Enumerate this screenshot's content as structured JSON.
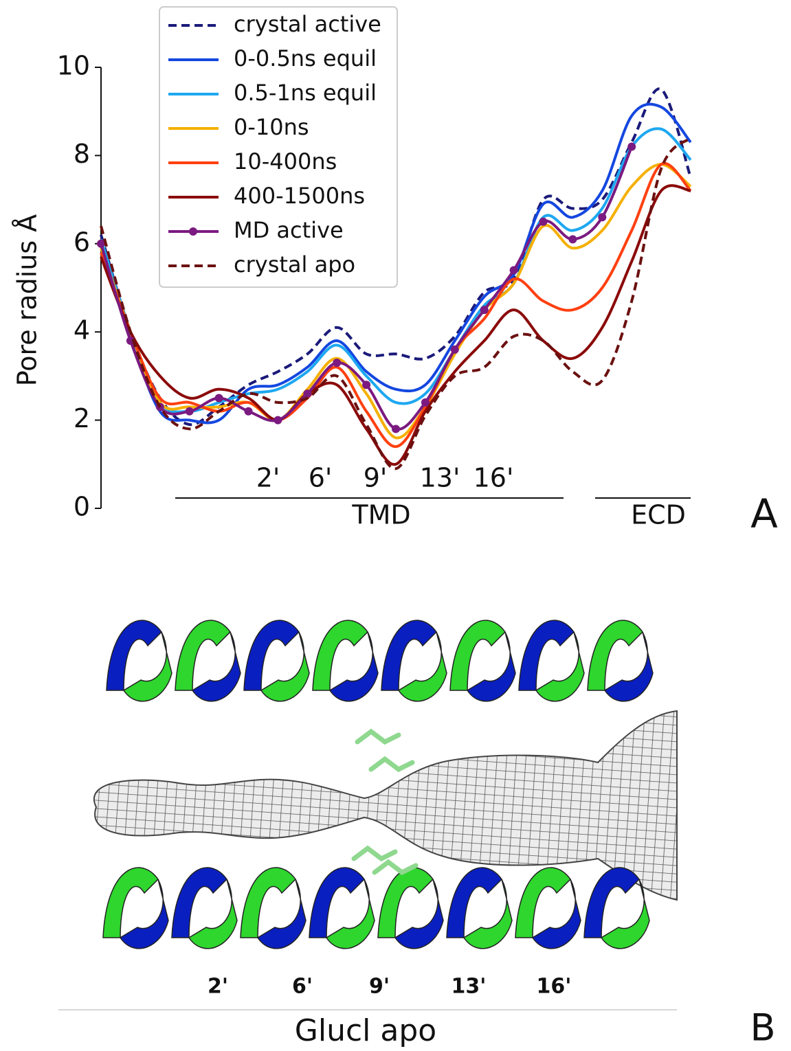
{
  "chart_data": {
    "type": "line",
    "y_label": "Pore radius Å",
    "x": [
      0,
      5,
      10,
      15,
      20,
      25,
      30,
      35,
      40,
      45,
      50,
      55,
      60,
      65,
      70,
      75,
      80,
      85,
      90,
      95,
      100
    ],
    "xlim": [
      0,
      100
    ],
    "ylim": [
      0,
      10
    ],
    "yticks": [
      0,
      2,
      4,
      6,
      8,
      10
    ],
    "legend": "upper left",
    "series": [
      {
        "name": "crystal active",
        "color": "#1a1a7a",
        "style": "dashed",
        "values": [
          6.2,
          4.0,
          2.5,
          1.9,
          2.3,
          2.8,
          3.1,
          3.5,
          4.1,
          3.5,
          3.5,
          3.4,
          3.9,
          4.9,
          5.2,
          7.0,
          6.8,
          7.0,
          8.3,
          9.5,
          7.5
        ]
      },
      {
        "name": "0-0.5ns equil",
        "color": "#1447e0",
        "style": "solid",
        "values": [
          6.0,
          3.9,
          2.2,
          2.0,
          2.0,
          2.7,
          2.8,
          3.2,
          3.8,
          3.1,
          2.7,
          2.8,
          3.8,
          4.8,
          5.3,
          6.9,
          6.6,
          7.2,
          8.9,
          9.1,
          8.3
        ]
      },
      {
        "name": "0.5-1ns equil",
        "color": "#1ea8f0",
        "style": "solid",
        "values": [
          6.1,
          4.0,
          2.4,
          2.2,
          2.4,
          2.6,
          2.7,
          3.1,
          3.7,
          3.0,
          2.4,
          2.6,
          3.6,
          4.6,
          5.1,
          6.6,
          6.3,
          6.8,
          8.2,
          8.6,
          7.9
        ]
      },
      {
        "name": "0-10ns",
        "color": "#f5b000",
        "style": "solid",
        "values": [
          5.9,
          4.0,
          2.4,
          2.3,
          2.3,
          2.4,
          2.0,
          2.7,
          3.4,
          2.6,
          1.6,
          2.3,
          3.5,
          4.5,
          5.1,
          6.4,
          5.9,
          6.3,
          7.3,
          7.8,
          7.3
        ]
      },
      {
        "name": "10-400ns",
        "color": "#ff4010",
        "style": "solid",
        "values": [
          5.8,
          4.0,
          2.5,
          2.4,
          2.2,
          2.4,
          2.0,
          2.5,
          3.2,
          2.2,
          1.4,
          2.3,
          3.6,
          4.3,
          5.2,
          4.7,
          4.5,
          5.0,
          6.3,
          7.8,
          7.2
        ]
      },
      {
        "name": "400-1500ns",
        "color": "#8b0a0a",
        "style": "solid",
        "values": [
          5.7,
          4.0,
          3.0,
          2.5,
          2.7,
          2.5,
          2.0,
          2.6,
          2.8,
          1.8,
          1.0,
          2.2,
          3.1,
          3.8,
          4.5,
          3.8,
          3.4,
          4.1,
          5.6,
          7.2,
          7.2
        ]
      },
      {
        "name": "MD active",
        "color": "#7b1a80",
        "style": "solid",
        "marker": "o",
        "values": [
          6.0,
          3.8,
          2.3,
          2.2,
          2.5,
          2.2,
          2.0,
          2.6,
          3.3,
          2.8,
          1.8,
          2.4,
          3.6,
          4.5,
          5.4,
          6.5,
          6.1,
          6.6,
          8.2,
          null,
          null
        ]
      },
      {
        "name": "crystal apo",
        "color": "#6b1010",
        "style": "dashed",
        "values": [
          6.4,
          4.0,
          2.3,
          1.8,
          2.2,
          2.6,
          2.4,
          2.5,
          3.0,
          1.9,
          0.9,
          2.1,
          3.0,
          3.2,
          3.9,
          3.8,
          3.1,
          2.9,
          4.7,
          7.7,
          8.4
        ]
      }
    ],
    "residue_labels": [
      "2'",
      "6'",
      "9'",
      "13'",
      "16'"
    ],
    "regions": [
      "TMD",
      "ECD"
    ],
    "panel_label": "A"
  },
  "panel_b": {
    "residue_labels": [
      "2'",
      "6'",
      "9'",
      "13'",
      "16'"
    ],
    "caption": "Glucl apo",
    "panel_label": "B"
  }
}
